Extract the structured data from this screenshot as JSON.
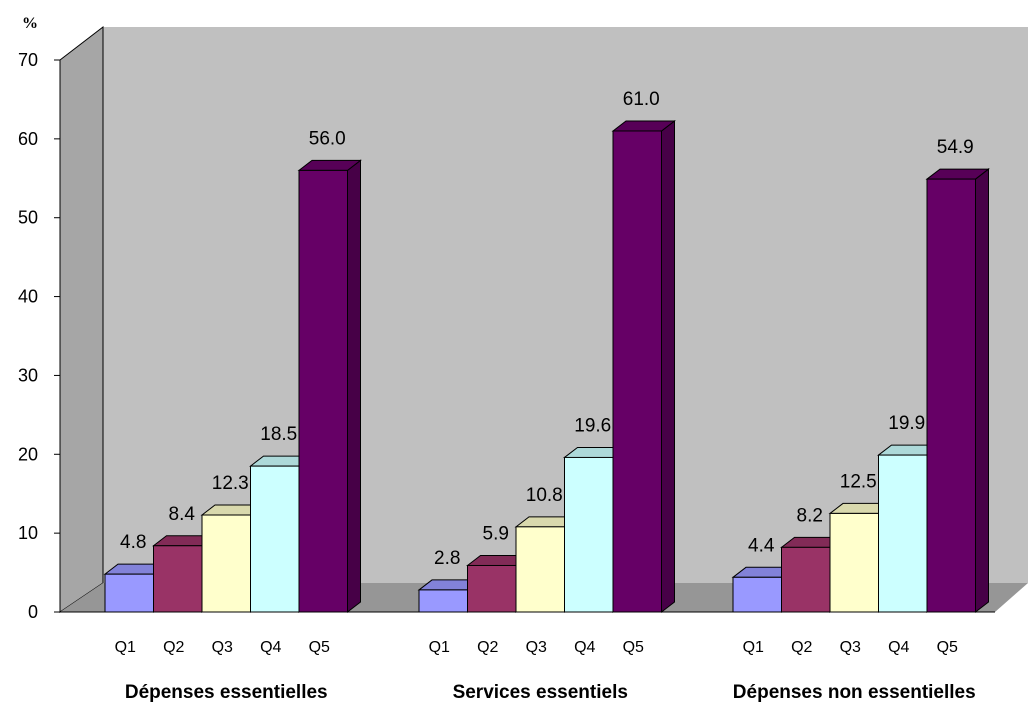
{
  "chart_data": {
    "type": "bar",
    "unit_label": "%",
    "ylim": [
      0,
      70
    ],
    "yticks": [
      "0",
      "10",
      "20",
      "30",
      "40",
      "50",
      "60",
      "70"
    ],
    "grid": false,
    "legend": "none",
    "groups": [
      {
        "name": "Dépenses essentielles",
        "categories": [
          "Q1",
          "Q2",
          "Q3",
          "Q4",
          "Q5"
        ],
        "values": [
          4.8,
          8.4,
          12.3,
          18.5,
          56.0
        ],
        "labels": [
          "4.8",
          "8.4",
          "12.3",
          "18.5",
          "56.0"
        ]
      },
      {
        "name": "Services essentiels",
        "categories": [
          "Q1",
          "Q2",
          "Q3",
          "Q4",
          "Q5"
        ],
        "values": [
          2.8,
          5.9,
          10.8,
          19.6,
          61.0
        ],
        "labels": [
          "2.8",
          "5.9",
          "10.8",
          "19.6",
          "61.0"
        ]
      },
      {
        "name": "Dépenses non essentielles",
        "categories": [
          "Q1",
          "Q2",
          "Q3",
          "Q4",
          "Q5"
        ],
        "values": [
          4.4,
          8.2,
          12.5,
          19.9,
          54.9
        ],
        "labels": [
          "4.4",
          "8.2",
          "12.5",
          "19.9",
          "54.9"
        ]
      }
    ],
    "colors": {
      "Q1": "#9999ff",
      "Q2": "#993366",
      "Q3": "#ffffcc",
      "Q4": "#ccffff",
      "Q5": "#660066",
      "wall": "#c0c0c0",
      "floor": "#969696"
    }
  }
}
